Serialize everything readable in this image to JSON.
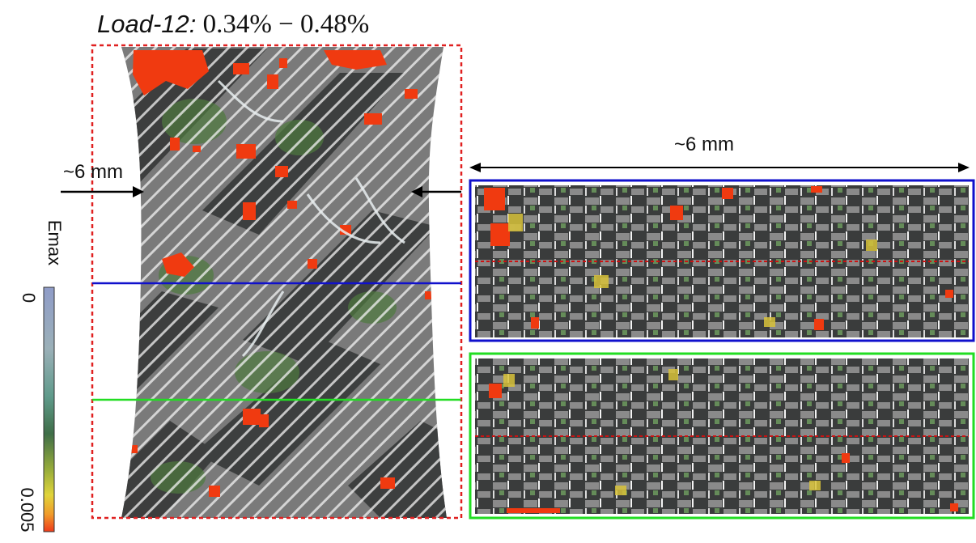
{
  "title": {
    "prefix": "Load-12:",
    "range": "0.34% − 0.48%"
  },
  "dimensions": {
    "specimen_width_label": "~6 mm",
    "slice_width_label": "~6 mm"
  },
  "colorbar": {
    "label": "Emax",
    "min_label": "0",
    "max_label": "0.005",
    "colors": [
      "#8f9cc8",
      "#9bb0b8",
      "#5f9a8a",
      "#3f6e48",
      "#9aae3a",
      "#e0d43a",
      "#f09a2a",
      "#ee3a1a"
    ]
  },
  "colors": {
    "specimen_outline": "#e02020",
    "blue_slice": "#1010cc",
    "green_slice": "#22dd22",
    "mid_line": "#cc1111",
    "hot_spot": "#f03a10",
    "specimen_gray": "#7a7a7a",
    "specimen_dark": "#3a3c3c"
  }
}
